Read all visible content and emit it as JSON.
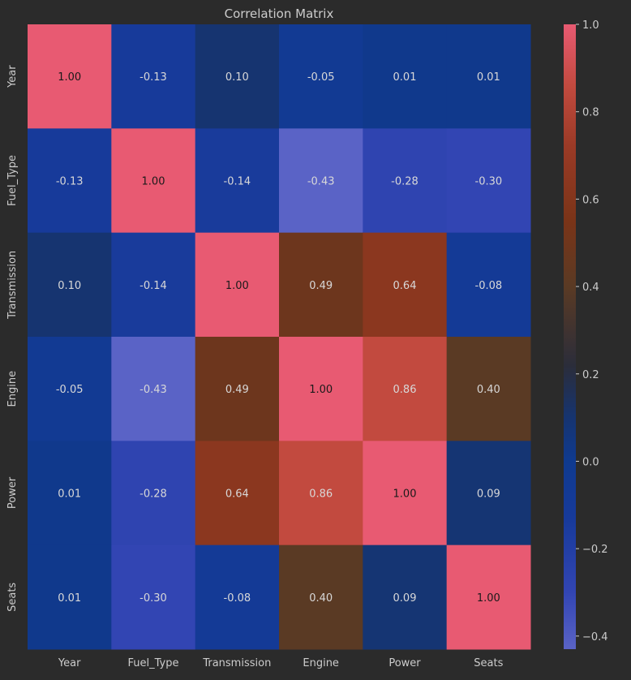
{
  "chart_data": {
    "type": "heatmap",
    "title": "Correlation Matrix",
    "xlabel": "",
    "ylabel": "",
    "x_labels": [
      "Year",
      "Fuel_Type",
      "Transmission",
      "Engine",
      "Power",
      "Seats"
    ],
    "y_labels": [
      "Year",
      "Fuel_Type",
      "Transmission",
      "Engine",
      "Power",
      "Seats"
    ],
    "values": [
      [
        1.0,
        -0.13,
        0.1,
        -0.05,
        0.01,
        0.01
      ],
      [
        -0.13,
        1.0,
        -0.14,
        -0.43,
        -0.28,
        -0.3
      ],
      [
        0.1,
        -0.14,
        1.0,
        0.49,
        0.64,
        -0.08
      ],
      [
        -0.05,
        -0.43,
        0.49,
        1.0,
        0.86,
        0.4
      ],
      [
        0.01,
        -0.28,
        0.64,
        0.86,
        1.0,
        0.09
      ],
      [
        0.01,
        -0.3,
        -0.08,
        0.4,
        0.09,
        1.0
      ]
    ],
    "annotation_format": "0.00",
    "colorbar": {
      "vmin": -0.43,
      "vmax": 1.0,
      "ticks": [
        -0.4,
        -0.2,
        0.0,
        0.2,
        0.4,
        0.6,
        0.8,
        1.0
      ],
      "tick_labels": [
        "−0.4",
        "−0.2",
        "0.0",
        "0.2",
        "0.4",
        "0.6",
        "0.8",
        "1.0"
      ],
      "colormap_stops": [
        {
          "value": -0.43,
          "color": "#5a63c6"
        },
        {
          "value": -0.3,
          "color": "#3245b3"
        },
        {
          "value": -0.13,
          "color": "#173a9a"
        },
        {
          "value": 0.0,
          "color": "#0f3a8f"
        },
        {
          "value": 0.1,
          "color": "#163470"
        },
        {
          "value": 0.22,
          "color": "#2b2d3a"
        },
        {
          "value": 0.4,
          "color": "#5a3a24"
        },
        {
          "value": 0.55,
          "color": "#7a3418"
        },
        {
          "value": 0.72,
          "color": "#9a3a26"
        },
        {
          "value": 0.86,
          "color": "#c24a3f"
        },
        {
          "value": 1.0,
          "color": "#e85a72"
        }
      ]
    },
    "colors": {
      "background": "#2b2b2b",
      "text": "#cccccc",
      "annotation": "#1a1a1a",
      "annotation_light": "#e0e0e0"
    }
  }
}
